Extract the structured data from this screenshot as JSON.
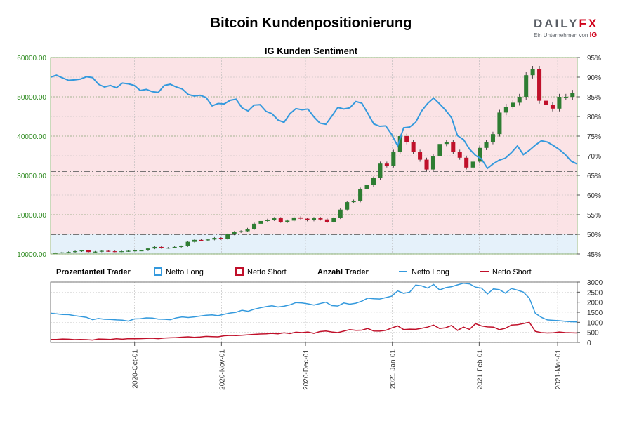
{
  "header": {
    "title": "Bitcoin Kundenpositionierung",
    "logo_left": "DAILY",
    "logo_right": "FX",
    "logo_sub": "Ein Unternehmen von",
    "logo_ig": "IG"
  },
  "chart_data": [
    {
      "type": "candlestick",
      "title": "IG Kunden Sentiment",
      "x_ticks": [
        "2020-Oct-01",
        "2020-Nov-01",
        "2020-Dec-01",
        "2021-Jan-01",
        "2021-Feb-01",
        "2021-Mar-01"
      ],
      "x_range": [
        "2020-09-01",
        "2021-03-08"
      ],
      "y_left": {
        "ticks": [
          "60000.00",
          "50000.00",
          "40000.00",
          "30000.00",
          "20000.00",
          "10000.00"
        ],
        "range": [
          10000,
          60000
        ],
        "color": "#2e8b20"
      },
      "y_right": {
        "ticks": [
          "95%",
          "90%",
          "85%",
          "80%",
          "75%",
          "70%",
          "65%",
          "60%",
          "55%",
          "50%",
          "45%"
        ],
        "range": [
          45,
          95
        ]
      },
      "price_close": [
        10300,
        10400,
        10500,
        10700,
        10900,
        10500,
        10600,
        10800,
        10700,
        10600,
        10700,
        10800,
        10900,
        10900,
        11400,
        11800,
        11500,
        11600,
        11800,
        12000,
        13100,
        13600,
        13500,
        13700,
        14100,
        13800,
        15000,
        15600,
        15800,
        16400,
        17700,
        18400,
        18700,
        19100,
        18200,
        18500,
        19300,
        19000,
        18600,
        19100,
        18800,
        18200,
        19200,
        21300,
        23200,
        23500,
        26500,
        27500,
        29300,
        33000,
        32500,
        36000,
        40000,
        38500,
        36000,
        34000,
        31500,
        35000,
        38000,
        38500,
        36000,
        34500,
        32000,
        33500,
        37000,
        38500,
        40500,
        46000,
        47500,
        48500,
        50000,
        55500,
        57000,
        49000,
        48000,
        47000,
        50000,
        50000,
        51000
      ],
      "sentiment_long_pct": [
        90.0,
        90.5,
        89.8,
        89.2,
        89.3,
        89.5,
        90.1,
        89.9,
        88.2,
        87.5,
        87.9,
        87.3,
        88.5,
        88.3,
        87.9,
        86.6,
        86.9,
        86.3,
        86.1,
        87.9,
        88.2,
        87.5,
        87.0,
        85.6,
        85.2,
        85.4,
        84.8,
        82.7,
        83.3,
        83.2,
        84.1,
        84.4,
        82.2,
        81.4,
        82.9,
        83.0,
        81.3,
        80.7,
        79.1,
        78.5,
        80.7,
        82.0,
        81.7,
        81.9,
        79.9,
        78.3,
        78.0,
        80.1,
        82.3,
        81.9,
        82.2,
        83.8,
        83.4,
        80.8,
        78.1,
        77.5,
        77.6,
        75.4,
        72.5,
        77.1,
        77.3,
        78.5,
        81.4,
        83.3,
        84.7,
        83.2,
        81.6,
        79.7,
        75.1,
        74.1,
        71.7,
        70.1,
        69.2,
        66.8,
        68.0,
        68.9,
        69.4,
        70.8,
        72.5,
        70.3,
        71.4,
        72.7,
        73.8,
        73.5,
        72.6,
        71.6,
        70.3,
        68.6,
        67.9
      ],
      "reference_lines": [
        {
          "axis": "left",
          "value": 31000
        },
        {
          "axis": "left",
          "value": 15000
        }
      ],
      "legend": {
        "group1": "Prozentanteil Trader",
        "long": "Netto Long",
        "short": "Netto Short",
        "group2": "Anzahl Trader",
        "long2": "Netto Long",
        "short2": "Netto Short"
      },
      "colors": {
        "long": "#3399dd",
        "short": "#c0102a",
        "up_candle": "#2e7d32",
        "down_candle": "#c0102a",
        "short_zone": "#fbe3e6",
        "long_zone": "#e5f1fa"
      }
    },
    {
      "type": "line",
      "y_right": {
        "ticks": [
          "3000",
          "2500",
          "2000",
          "1500",
          "1000",
          "500",
          "0"
        ],
        "range": [
          0,
          3000
        ]
      },
      "series": [
        {
          "name": "Netto Long",
          "values": [
            1450,
            1420,
            1390,
            1380,
            1330,
            1290,
            1250,
            1130,
            1190,
            1150,
            1140,
            1120,
            1110,
            1060,
            1170,
            1180,
            1220,
            1210,
            1160,
            1150,
            1130,
            1220,
            1270,
            1240,
            1270,
            1310,
            1350,
            1370,
            1330,
            1400,
            1460,
            1500,
            1600,
            1550,
            1650,
            1720,
            1780,
            1820,
            1760,
            1800,
            1870,
            1980,
            1960,
            1920,
            1860,
            1930,
            2000,
            1830,
            1810,
            1960,
            1900,
            1950,
            2050,
            2200,
            2170,
            2160,
            2230,
            2300,
            2560,
            2440,
            2500,
            2850,
            2810,
            2700,
            2880,
            2610,
            2720,
            2770,
            2860,
            2940,
            2910,
            2750,
            2700,
            2410,
            2660,
            2620,
            2450,
            2680,
            2600,
            2500,
            2200,
            1450,
            1250,
            1120,
            1100,
            1080,
            1050,
            1030,
            1020
          ]
        },
        {
          "name": "Netto Short",
          "values": [
            150,
            150,
            170,
            160,
            140,
            150,
            140,
            120,
            170,
            160,
            150,
            180,
            160,
            190,
            180,
            190,
            200,
            210,
            190,
            220,
            230,
            240,
            260,
            280,
            250,
            270,
            300,
            290,
            280,
            330,
            350,
            340,
            360,
            380,
            400,
            420,
            430,
            450,
            430,
            480,
            440,
            510,
            490,
            520,
            450,
            540,
            570,
            520,
            490,
            560,
            640,
            600,
            610,
            690,
            570,
            560,
            600,
            720,
            820,
            640,
            660,
            650,
            700,
            760,
            860,
            690,
            730,
            840,
            600,
            760,
            650,
            930,
            820,
            770,
            760,
            630,
            700,
            860,
            880,
            940,
            1000,
            550,
            490,
            470,
            480,
            520,
            490,
            480,
            470
          ]
        }
      ]
    }
  ]
}
